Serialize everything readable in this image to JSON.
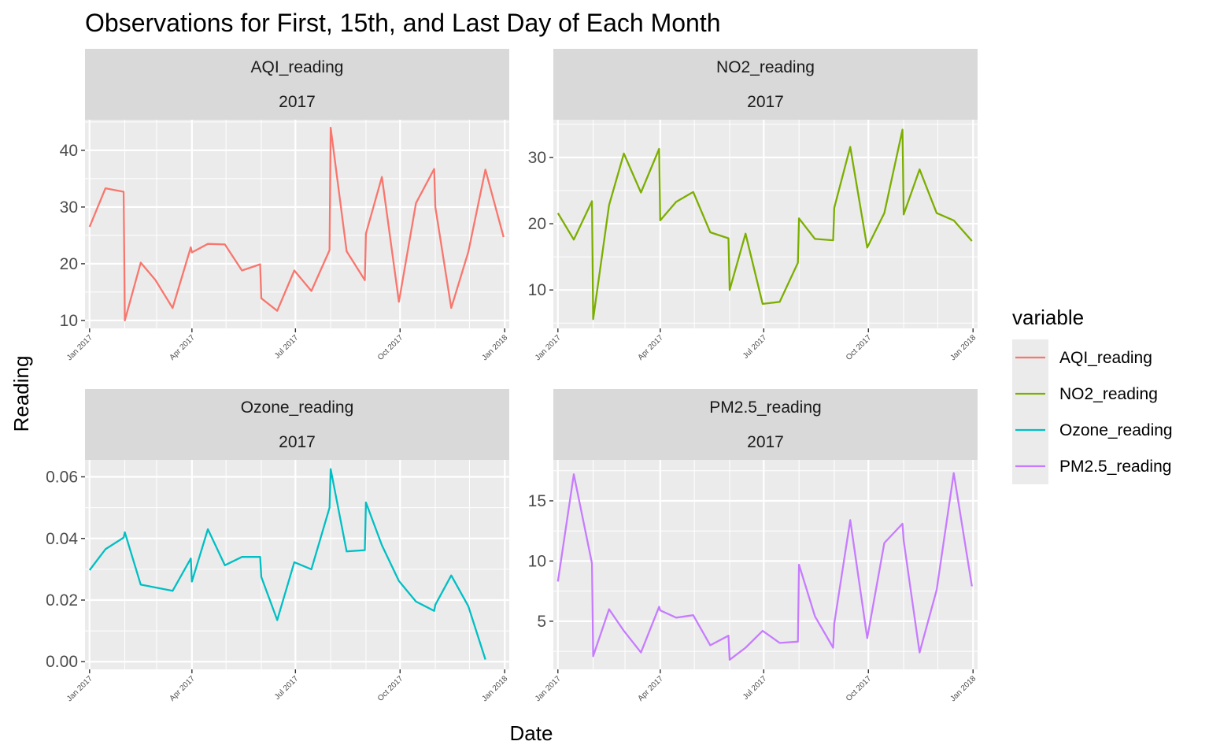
{
  "chart_data": {
    "type": "line",
    "title": "Observations for First, 15th, and Last Day of Each Month",
    "xlabel": "Date",
    "ylabel": "Reading",
    "legend": {
      "title": "variable",
      "placement": "right",
      "entries": [
        {
          "name": "AQI_reading",
          "color": "#F8766D"
        },
        {
          "name": "NO2_reading",
          "color": "#7CAE00"
        },
        {
          "name": "Ozone_reading",
          "color": "#00BFC4"
        },
        {
          "name": "PM2.5_reading",
          "color": "#C77CFF"
        }
      ]
    },
    "panels": [
      {
        "strip": "AQI_reading",
        "strip2": "2017",
        "color": "#F8766D",
        "xlim": [
          "2016-12-28",
          "2018-01-05"
        ],
        "ylim": [
          8.6,
          45.4
        ],
        "yticks": [
          10,
          20,
          30,
          40
        ],
        "ytick_labels": [
          "10",
          "20",
          "30",
          "40"
        ],
        "xticks": [
          "2017-01-01",
          "2017-04-01",
          "2017-07-01",
          "2017-10-01",
          "2018-01-01"
        ],
        "xtick_labels": [
          "Jan 2017",
          "Apr 2017",
          "Jul 2017",
          "Oct 2017",
          "Jan 2018"
        ],
        "x": [
          "2017-01-01",
          "2017-01-15",
          "2017-01-31",
          "2017-02-01",
          "2017-02-15",
          "2017-02-28",
          "2017-03-15",
          "2017-03-31",
          "2017-04-01",
          "2017-04-15",
          "2017-04-30",
          "2017-05-15",
          "2017-05-31",
          "2017-06-01",
          "2017-06-15",
          "2017-06-30",
          "2017-07-15",
          "2017-07-31",
          "2017-08-01",
          "2017-08-15",
          "2017-08-31",
          "2017-09-01",
          "2017-09-15",
          "2017-09-30",
          "2017-10-15",
          "2017-10-31",
          "2017-11-01",
          "2017-11-15",
          "2017-11-30",
          "2017-12-15",
          "2017-12-31"
        ],
        "y": [
          26.5,
          33.3,
          32.7,
          10.0,
          20.2,
          17.1,
          12.2,
          22.9,
          22.0,
          23.5,
          23.4,
          18.8,
          19.9,
          13.9,
          11.7,
          18.8,
          15.2,
          22.4,
          44.0,
          22.2,
          17.1,
          25.3,
          35.3,
          13.3,
          30.7,
          36.7,
          30.0,
          12.2,
          22.1,
          36.6,
          24.7
        ]
      },
      {
        "strip": "NO2_reading",
        "strip2": "2017",
        "color": "#7CAE00",
        "xlim": [
          "2016-12-28",
          "2018-01-05"
        ],
        "ylim": [
          4.2,
          35.7
        ],
        "yticks": [
          10,
          20,
          30
        ],
        "ytick_labels": [
          "10",
          "20",
          "30"
        ],
        "xticks": [
          "2017-01-01",
          "2017-04-01",
          "2017-07-01",
          "2017-10-01",
          "2018-01-01"
        ],
        "xtick_labels": [
          "Jan 2017",
          "Apr 2017",
          "Jul 2017",
          "Oct 2017",
          "Jan 2018"
        ],
        "x": [
          "2017-01-01",
          "2017-01-15",
          "2017-01-31",
          "2017-02-01",
          "2017-02-15",
          "2017-02-28",
          "2017-03-15",
          "2017-03-31",
          "2017-04-01",
          "2017-04-15",
          "2017-04-30",
          "2017-05-15",
          "2017-05-31",
          "2017-06-01",
          "2017-06-15",
          "2017-06-30",
          "2017-07-15",
          "2017-07-31",
          "2017-08-01",
          "2017-08-15",
          "2017-08-31",
          "2017-09-01",
          "2017-09-15",
          "2017-09-30",
          "2017-10-15",
          "2017-10-31",
          "2017-11-01",
          "2017-11-15",
          "2017-11-30",
          "2017-12-15",
          "2017-12-31"
        ],
        "y": [
          21.6,
          17.6,
          23.4,
          5.6,
          22.8,
          30.6,
          24.7,
          31.3,
          20.5,
          23.3,
          24.8,
          18.7,
          17.8,
          10.0,
          18.5,
          7.9,
          8.2,
          14.1,
          20.8,
          17.7,
          17.5,
          22.4,
          31.6,
          16.4,
          21.6,
          34.2,
          21.4,
          28.2,
          21.6,
          20.5,
          17.4
        ]
      },
      {
        "strip": "Ozone_reading",
        "strip2": "2017",
        "color": "#00BFC4",
        "xlim": [
          "2016-12-28",
          "2018-01-05"
        ],
        "ylim": [
          -0.0025,
          0.0655
        ],
        "yticks": [
          0,
          0.02,
          0.04,
          0.06
        ],
        "ytick_labels": [
          "0.00",
          "0.02",
          "0.04",
          "0.06"
        ],
        "xticks": [
          "2017-01-01",
          "2017-04-01",
          "2017-07-01",
          "2017-10-01",
          "2018-01-01"
        ],
        "xtick_labels": [
          "Jan 2017",
          "Apr 2017",
          "Jul 2017",
          "Oct 2017",
          "Jan 2018"
        ],
        "x": [
          "2017-01-01",
          "2017-01-15",
          "2017-01-31",
          "2017-02-01",
          "2017-02-15",
          "2017-03-15",
          "2017-03-31",
          "2017-04-01",
          "2017-04-15",
          "2017-04-30",
          "2017-05-15",
          "2017-05-31",
          "2017-06-01",
          "2017-06-15",
          "2017-06-30",
          "2017-07-15",
          "2017-07-31",
          "2017-08-01",
          "2017-08-15",
          "2017-08-31",
          "2017-09-01",
          "2017-09-15",
          "2017-09-30",
          "2017-10-15",
          "2017-10-31",
          "2017-11-01",
          "2017-11-15",
          "2017-11-30",
          "2017-12-15"
        ],
        "y": [
          0.0297,
          0.0365,
          0.0403,
          0.042,
          0.025,
          0.023,
          0.0335,
          0.026,
          0.043,
          0.0313,
          0.034,
          0.034,
          0.0275,
          0.0135,
          0.0323,
          0.03,
          0.05,
          0.0625,
          0.0358,
          0.0362,
          0.0517,
          0.0378,
          0.0262,
          0.0195,
          0.0165,
          0.0185,
          0.028,
          0.018,
          0.0007
        ]
      },
      {
        "strip": "PM2.5_reading",
        "strip2": "2017",
        "color": "#C77CFF",
        "xlim": [
          "2016-12-28",
          "2018-01-05"
        ],
        "ylim": [
          1.0,
          18.4
        ],
        "yticks": [
          5,
          10,
          15
        ],
        "ytick_labels": [
          "5",
          "10",
          "15"
        ],
        "xticks": [
          "2017-01-01",
          "2017-04-01",
          "2017-07-01",
          "2017-10-01",
          "2018-01-01"
        ],
        "xtick_labels": [
          "Jan 2017",
          "Apr 2017",
          "Jul 2017",
          "Oct 2017",
          "Jan 2018"
        ],
        "x": [
          "2017-01-01",
          "2017-01-15",
          "2017-01-31",
          "2017-02-01",
          "2017-02-15",
          "2017-02-28",
          "2017-03-15",
          "2017-03-31",
          "2017-04-01",
          "2017-04-15",
          "2017-04-30",
          "2017-05-15",
          "2017-05-31",
          "2017-06-01",
          "2017-06-15",
          "2017-06-30",
          "2017-07-15",
          "2017-07-31",
          "2017-08-01",
          "2017-08-15",
          "2017-08-31",
          "2017-09-01",
          "2017-09-15",
          "2017-09-30",
          "2017-10-15",
          "2017-10-31",
          "2017-11-01",
          "2017-11-15",
          "2017-11-30",
          "2017-12-15",
          "2017-12-31"
        ],
        "y": [
          8.3,
          17.2,
          9.8,
          2.1,
          6.0,
          4.2,
          2.4,
          6.2,
          5.9,
          5.3,
          5.5,
          3.0,
          3.8,
          1.8,
          2.8,
          4.2,
          3.2,
          3.3,
          9.7,
          5.4,
          2.8,
          4.8,
          13.4,
          3.6,
          11.5,
          13.1,
          11.7,
          2.4,
          7.6,
          17.3,
          7.9
        ]
      }
    ]
  }
}
